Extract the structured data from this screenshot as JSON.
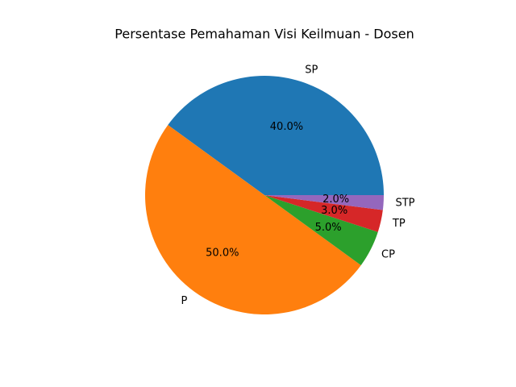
{
  "chart_data": {
    "type": "pie",
    "title": "Persentase Pemahaman Visi Keilmuan - Dosen",
    "categories": [
      "SP",
      "P",
      "CP",
      "TP",
      "STP"
    ],
    "values": [
      40,
      50,
      5,
      3,
      2
    ],
    "value_labels": [
      "40.0%",
      "50.0%",
      "5.0%",
      "3.0%",
      "2.0%"
    ],
    "colors": [
      "#1f77b4",
      "#ff7f0e",
      "#2ca02c",
      "#d62728",
      "#9467bd"
    ]
  }
}
